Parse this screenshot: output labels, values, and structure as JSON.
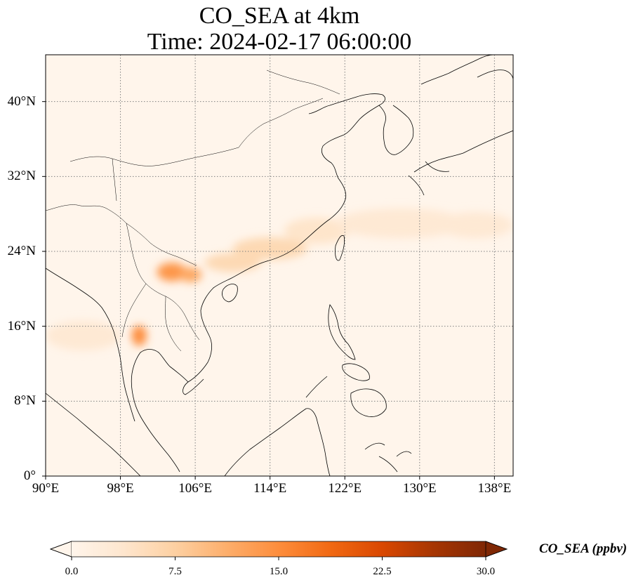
{
  "title_line1": "CO_SEA at 4km",
  "title_line2": "Time: 2024-02-17 06:00:00",
  "map": {
    "lon_range": [
      90,
      140
    ],
    "lat_range": [
      0,
      45
    ],
    "lat_ticks": [
      {
        "value": 40,
        "label": "40°N"
      },
      {
        "value": 32,
        "label": "32°N"
      },
      {
        "value": 24,
        "label": "24°N"
      },
      {
        "value": 16,
        "label": "16°N"
      },
      {
        "value": 8,
        "label": "8°N"
      },
      {
        "value": 0,
        "label": "0°"
      }
    ],
    "lon_ticks": [
      {
        "value": 90,
        "label": "90°E"
      },
      {
        "value": 98,
        "label": "98°E"
      },
      {
        "value": 106,
        "label": "106°E"
      },
      {
        "value": 114,
        "label": "114°E"
      },
      {
        "value": 122,
        "label": "122°E"
      },
      {
        "value": 130,
        "label": "130°E"
      },
      {
        "value": 138,
        "label": "138°E"
      }
    ],
    "gridlines": true,
    "background_color": "#fff5eb",
    "coastline_color": "#000000",
    "plumes": [
      {
        "lon": 103.5,
        "lat": 21.8,
        "rx": 1.6,
        "ry": 1.0,
        "value": 14
      },
      {
        "lon": 105.5,
        "lat": 21.5,
        "rx": 1.2,
        "ry": 0.8,
        "value": 12
      },
      {
        "lon": 100.0,
        "lat": 15.0,
        "rx": 0.8,
        "ry": 1.1,
        "value": 15
      },
      {
        "lon": 110.0,
        "lat": 22.8,
        "rx": 3.0,
        "ry": 1.0,
        "value": 6
      },
      {
        "lon": 114.0,
        "lat": 24.3,
        "rx": 4.0,
        "ry": 1.2,
        "value": 6
      },
      {
        "lon": 119.0,
        "lat": 26.2,
        "rx": 3.5,
        "ry": 1.4,
        "value": 4
      },
      {
        "lon": 128.0,
        "lat": 27.0,
        "rx": 7.0,
        "ry": 1.6,
        "value": 3
      },
      {
        "lon": 136.0,
        "lat": 26.8,
        "rx": 4.0,
        "ry": 1.4,
        "value": 3
      },
      {
        "lon": 94.0,
        "lat": 15.0,
        "rx": 4.0,
        "ry": 1.6,
        "value": 3
      }
    ]
  },
  "colorbar": {
    "min": 0.0,
    "max": 30.0,
    "ticks": [
      "0.0",
      "7.5",
      "15.0",
      "22.5",
      "30.0"
    ],
    "tick_values": [
      0,
      7.5,
      15,
      22.5,
      30
    ],
    "label": "CO_SEA (ppbv)",
    "colors": [
      "#fff5eb",
      "#fee6ce",
      "#fdd0a2",
      "#fdae6b",
      "#fd8d3c",
      "#f16913",
      "#d94801",
      "#a63603",
      "#7f2704"
    ]
  }
}
